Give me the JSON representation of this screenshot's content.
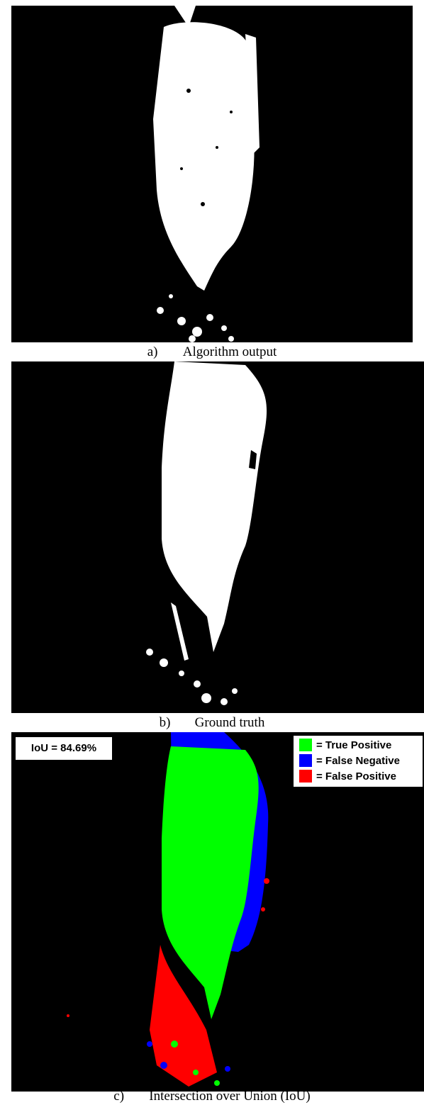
{
  "figure": {
    "panels": [
      {
        "label": "a)",
        "caption": "Algorithm output"
      },
      {
        "label": "b)",
        "caption": "Ground truth"
      },
      {
        "label": "c)",
        "caption": "Intersection over Union (IoU)",
        "annotation": "IoU = 84.69%",
        "legend": [
          {
            "text": "= True Positive",
            "color": "#00ff00"
          },
          {
            "text": "= False Negative",
            "color": "#0000ff"
          },
          {
            "text": "= False Positive",
            "color": "#ff0000"
          }
        ]
      }
    ]
  }
}
